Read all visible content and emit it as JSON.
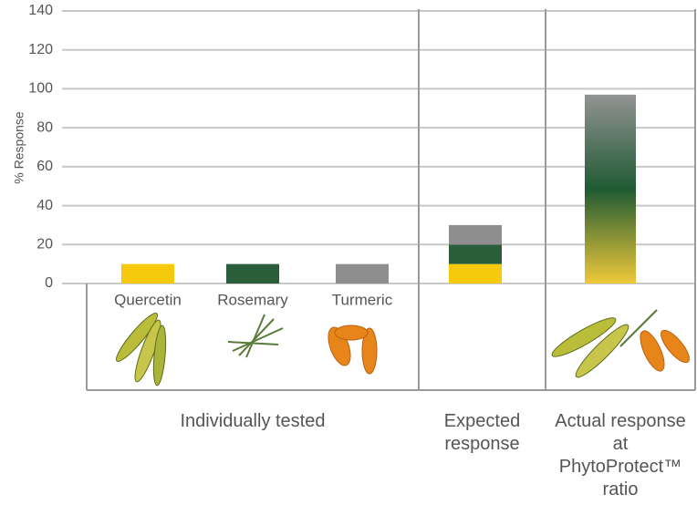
{
  "chart_data": {
    "type": "bar",
    "y_label": "% Response",
    "ylim": [
      0,
      140
    ],
    "yticks": [
      0,
      20,
      40,
      60,
      80,
      100,
      120,
      140
    ],
    "grid": true,
    "categories": [
      "Quercetin",
      "Rosemary",
      "Turmeric"
    ],
    "values": [
      10,
      10,
      10
    ],
    "colors": [
      "#f7c90c",
      "#2a5e3a",
      "#8e8e8e"
    ],
    "expected_segments": [
      10,
      10,
      10
    ],
    "actual": 97,
    "actual_gradient": [
      "#939393",
      "#1f5a33",
      "#efc93a"
    ],
    "groups": [
      "Individually tested",
      "Expected response",
      "Actual response at PhytoProtect™ ratio"
    ]
  }
}
